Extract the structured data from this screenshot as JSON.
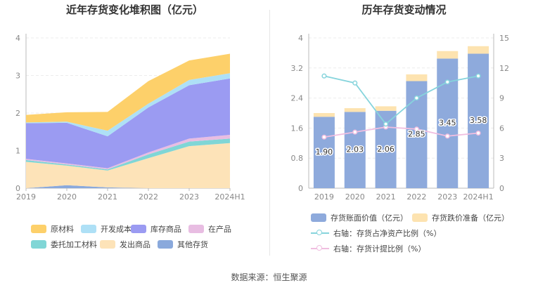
{
  "source": "数据来源：恒生聚源",
  "colors": {
    "原材料": "#fdd06a",
    "开发成本": "#aee0f6",
    "库存商品": "#9b9bf2",
    "在产品": "#e8bde2",
    "委托加工材料": "#80d6d6",
    "发出商品": "#fde3b8",
    "其他存货": "#8aa9dc",
    "bar_value": "#8eaadc",
    "bar_reserve": "#fde3b0",
    "line_assets": "#86d4dc",
    "line_provision": "#f0bee0"
  },
  "chart_data": [
    {
      "type": "area",
      "title": "近年存货变化堆积图（亿元）",
      "categories": [
        "2019",
        "2020",
        "2021",
        "2022",
        "2023",
        "2024H1"
      ],
      "ylim": [
        0,
        4
      ],
      "yticks": [
        "0",
        "1",
        "2",
        "3",
        "4"
      ],
      "series": [
        {
          "name": "其他存货",
          "values": [
            0.0,
            0.08,
            0.02,
            0.0,
            0.0,
            0.0
          ]
        },
        {
          "name": "发出商品",
          "values": [
            0.7,
            0.52,
            0.45,
            0.8,
            1.12,
            1.2
          ]
        },
        {
          "name": "委托加工材料",
          "values": [
            0.05,
            0.03,
            0.03,
            0.1,
            0.12,
            0.12
          ]
        },
        {
          "name": "在产品",
          "values": [
            0.03,
            0.03,
            0.03,
            0.05,
            0.08,
            0.1
          ]
        },
        {
          "name": "库存商品",
          "values": [
            0.95,
            1.08,
            0.85,
            1.2,
            1.42,
            1.5
          ]
        },
        {
          "name": "开发成本",
          "values": [
            0.02,
            0.03,
            0.15,
            0.1,
            0.14,
            0.14
          ]
        },
        {
          "name": "原材料",
          "values": [
            0.2,
            0.25,
            0.5,
            0.6,
            0.52,
            0.52
          ]
        }
      ],
      "legend": [
        "原材料",
        "开发成本",
        "库存商品",
        "在产品",
        "委托加工材料",
        "发出商品",
        "其他存货"
      ]
    },
    {
      "type": "bar",
      "title": "历年存货变动情况",
      "categories": [
        "2019",
        "2020",
        "2021",
        "2022",
        "2023",
        "2024H1"
      ],
      "ylim": [
        0,
        4
      ],
      "yticks": [
        "0",
        "0.8",
        "1.6",
        "2.4",
        "3.2",
        "4"
      ],
      "y2lim": [
        0,
        15
      ],
      "y2ticks": [
        "0",
        "3",
        "6",
        "9",
        "12",
        "15"
      ],
      "series": [
        {
          "name": "存货账面价值（亿元）",
          "values": [
            1.9,
            2.03,
            2.06,
            2.85,
            3.45,
            3.58
          ],
          "labels": [
            "1.90",
            "2.03",
            "2.06",
            "2.85",
            "3.45",
            "3.58"
          ]
        },
        {
          "name": "存货跌价准备（亿元）",
          "values": [
            0.1,
            0.1,
            0.12,
            0.18,
            0.2,
            0.2
          ]
        },
        {
          "name": "右轴：存货占净资产比例（%）",
          "axis": "right",
          "values": [
            11.2,
            10.5,
            6.4,
            9.0,
            10.6,
            11.2
          ]
        },
        {
          "name": "右轴：存货计提比例（%）",
          "axis": "right",
          "values": [
            5.1,
            5.6,
            6.1,
            5.9,
            5.2,
            5.5
          ]
        }
      ]
    }
  ]
}
